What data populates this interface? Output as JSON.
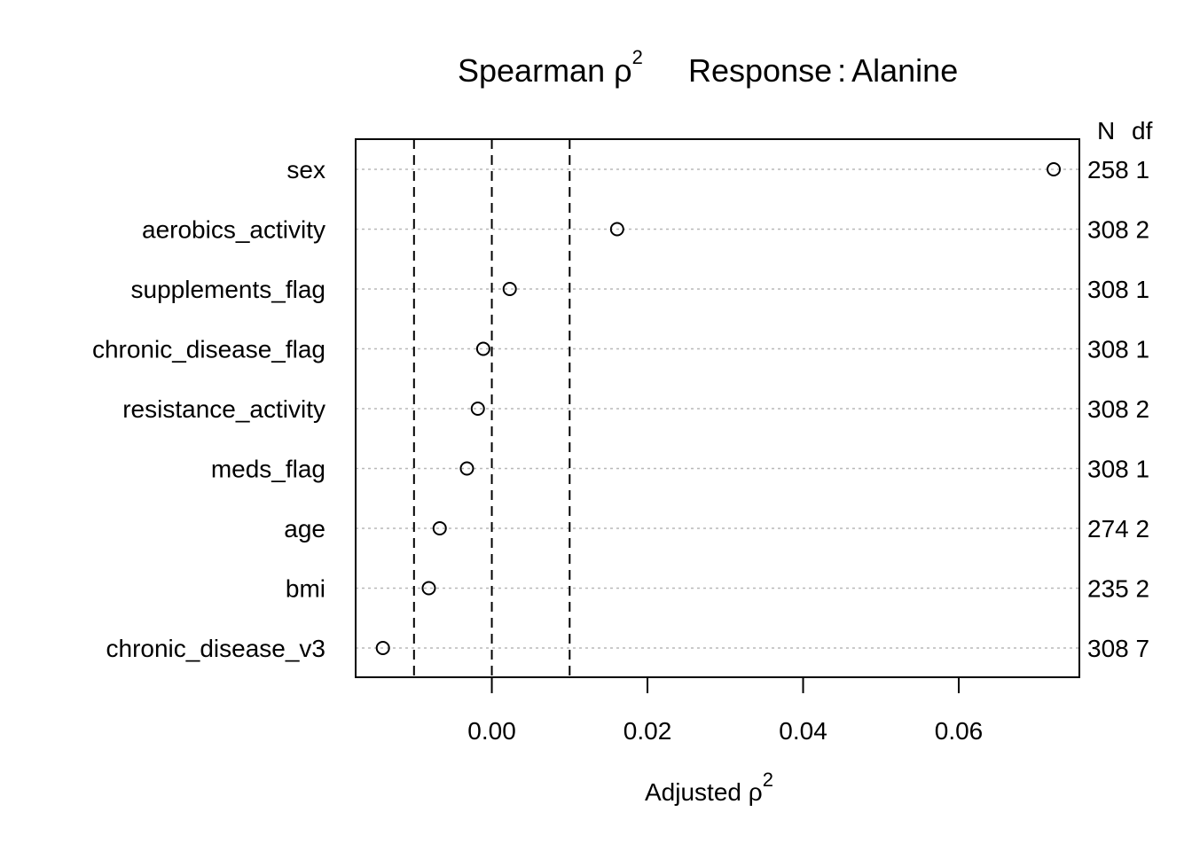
{
  "chart_data": {
    "type": "scatter",
    "title": {
      "prefix": "Spearman ",
      "symbol": "ρ",
      "exponent": "2",
      "response_label": "Response",
      "separator": ":",
      "response_value": "Alanine"
    },
    "xlabel": {
      "text": "Adjusted ",
      "symbol": "ρ",
      "exponent": "2"
    },
    "xlim": [
      -0.0175,
      0.0755
    ],
    "x_ticks": [
      0.0,
      0.02,
      0.04,
      0.06
    ],
    "x_tick_labels": [
      "0.00",
      "0.02",
      "0.04",
      "0.06"
    ],
    "reference_lines": [
      -0.01,
      0.0,
      0.01
    ],
    "right_headers": [
      "N",
      "df"
    ],
    "categories": [
      "sex",
      "aerobics_activity",
      "supplements_flag",
      "chronic_disease_flag",
      "resistance_activity",
      "meds_flag",
      "age",
      "bmi",
      "chronic_disease_v3"
    ],
    "values": [
      0.0722,
      0.0161,
      0.0023,
      -0.0011,
      -0.0018,
      -0.0032,
      -0.0067,
      -0.0081,
      -0.014
    ],
    "N": [
      258,
      308,
      308,
      308,
      308,
      308,
      274,
      235,
      308
    ],
    "df": [
      1,
      2,
      1,
      1,
      2,
      1,
      2,
      2,
      7
    ],
    "right_labels": [
      "258 1",
      "308 2",
      "308 1",
      "308 1",
      "308 2",
      "308 1",
      "274 2",
      "235 2",
      "308 7"
    ],
    "grid": "dotted-horizontal"
  }
}
